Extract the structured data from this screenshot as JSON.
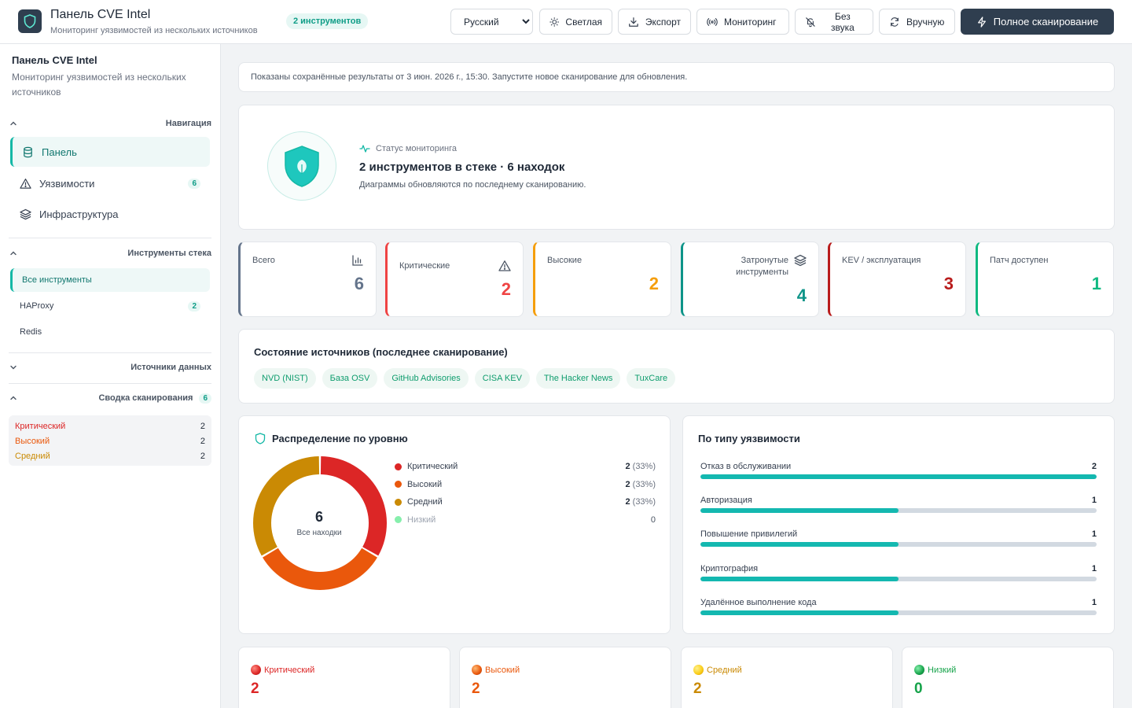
{
  "header": {
    "title": "Панель CVE Intel",
    "subtitle": "Мониторинг уязвимостей из нескольких источников",
    "tools_badge": "2 инструментов",
    "language": "Русский",
    "buttons": {
      "theme": "Светлая",
      "export": "Экспорт",
      "monitoring": "Мониторинг",
      "mute": "Без звука",
      "manual": "Вручную",
      "full_scan": "Полное сканирование"
    }
  },
  "sidebar": {
    "title": "Панель CVE Intel",
    "subtitle": "Мониторинг уязвимостей из нескольких источников",
    "navigation_label": "Навигация",
    "nav": [
      {
        "label": "Панель",
        "icon": "database-icon"
      },
      {
        "label": "Уязвимости",
        "icon": "alert-triangle-icon",
        "count": "6"
      },
      {
        "label": "Инфраструктура",
        "icon": "layers-icon"
      }
    ],
    "stack_label": "Инструменты стека",
    "tools": [
      {
        "label": "Все инструменты"
      },
      {
        "label": "HAProxy",
        "count": "2"
      },
      {
        "label": "Redis"
      }
    ],
    "sources_label": "Источники данных",
    "scan_summary_label": "Сводка сканирования",
    "scan_summary_count": "6",
    "summary": [
      {
        "label": "Критический",
        "value": "2",
        "color": "#dc2626"
      },
      {
        "label": "Высокий",
        "value": "2",
        "color": "#ea580c"
      },
      {
        "label": "Средний",
        "value": "2",
        "color": "#ca8a04"
      }
    ]
  },
  "notice": "Показаны сохранённые результаты от 3 июн. 2026 г., 15:30. Запустите новое сканирование для обновления.",
  "status": {
    "label": "Статус мониторинга",
    "title": "2 инструментов в стеке · 6 находок",
    "description": "Диаграммы обновляются по последнему сканированию."
  },
  "stats": [
    {
      "label": "Всего",
      "value": "6",
      "color": "#64748b"
    },
    {
      "label": "Критические",
      "value": "2",
      "color": "#ef4444"
    },
    {
      "label": "Высокие",
      "value": "2",
      "color": "#f59e0b"
    },
    {
      "label": "Затронутые инструменты",
      "value": "4",
      "color": "#0d9488"
    },
    {
      "label": "KEV / эксплуатация",
      "value": "3",
      "color": "#b91c1c"
    },
    {
      "label": "Патч доступен",
      "value": "1",
      "color": "#10b981"
    }
  ],
  "sources": {
    "title": "Состояние источников (последнее сканирование)",
    "chips": [
      "NVD (NIST)",
      "База OSV",
      "GitHub Advisories",
      "CISA KEV",
      "The Hacker News",
      "TuxCare"
    ]
  },
  "distribution": {
    "title": "Распределение по уровню",
    "center_value": "6",
    "center_label": "Все находки",
    "items": [
      {
        "label": "Критический",
        "value": "2",
        "pct": "(33%)",
        "color": "#dc2626"
      },
      {
        "label": "Высокий",
        "value": "2",
        "pct": "(33%)",
        "color": "#ea580c"
      },
      {
        "label": "Средний",
        "value": "2",
        "pct": "(33%)",
        "color": "#ca8a04"
      },
      {
        "label": "Низкий",
        "value": "0",
        "pct": "",
        "color": "#86efac"
      }
    ]
  },
  "chart_data": [
    {
      "type": "pie",
      "title": "Распределение по уровню",
      "categories": [
        "Критический",
        "Высокий",
        "Средний",
        "Низкий"
      ],
      "values": [
        2,
        2,
        2,
        0
      ]
    },
    {
      "type": "bar",
      "title": "По типу уязвимости",
      "categories": [
        "Отказ в обслуживании",
        "Авторизация",
        "Повышение привилегий",
        "Криптография",
        "Удалённое выполнение кода"
      ],
      "values": [
        2,
        1,
        1,
        1,
        1
      ],
      "xlim": [
        0,
        2
      ]
    }
  ],
  "types": {
    "title": "По типу уязвимости",
    "items": [
      {
        "label": "Отказ в обслуживании",
        "value": "2"
      },
      {
        "label": "Авторизация",
        "value": "1"
      },
      {
        "label": "Повышение привилегий",
        "value": "1"
      },
      {
        "label": "Криптография",
        "value": "1"
      },
      {
        "label": "Удалённое выполнение кода",
        "value": "1"
      }
    ]
  },
  "severity_cards": [
    {
      "label": "Критический",
      "value": "2",
      "color": "#dc2626"
    },
    {
      "label": "Высокий",
      "value": "2",
      "color": "#ea580c"
    },
    {
      "label": "Средний",
      "value": "2",
      "color": "#ca8a04"
    },
    {
      "label": "Низкий",
      "value": "0",
      "color": "#16a34a"
    }
  ]
}
